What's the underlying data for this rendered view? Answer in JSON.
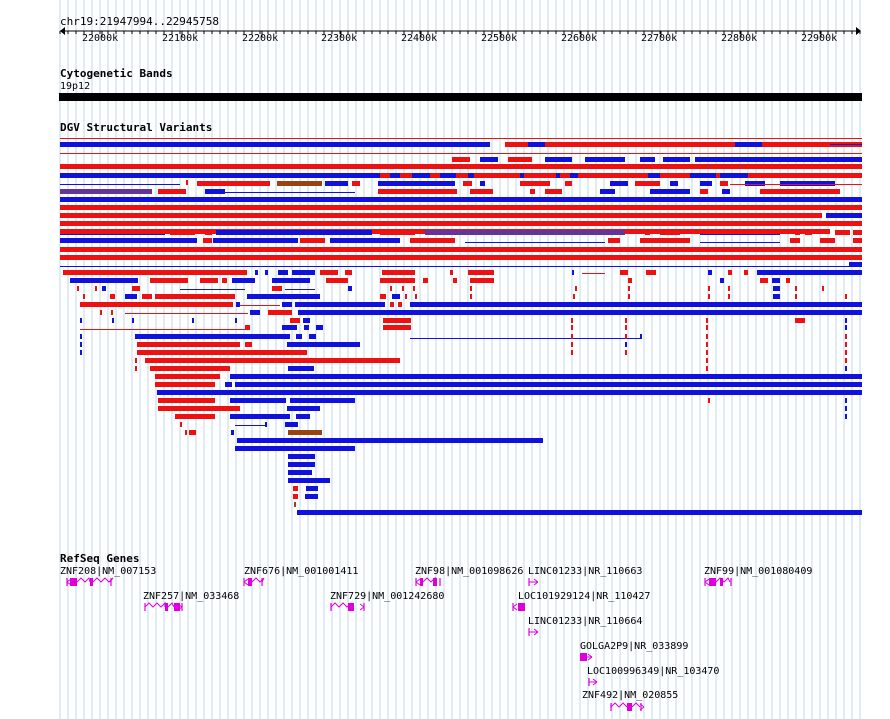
{
  "region_label": "chr19:21947994..22945758",
  "scale": {
    "ticks": [
      "22000k",
      "22100k",
      "22200k",
      "22300k",
      "22400k",
      "22500k",
      "22600k",
      "22700k",
      "22800k",
      "22900k"
    ]
  },
  "tracks": {
    "cytoband": {
      "title": "Cytogenetic Bands",
      "band": "19p12"
    },
    "dgv": {
      "title": "DGV Structural Variants"
    },
    "refseq": {
      "title": "RefSeq Genes"
    }
  },
  "colors": {
    "loss": "#ee1111",
    "gain": "#1111dd",
    "complex": "#663399",
    "inversion": "#994411",
    "gene": "#dd00dd",
    "grid": "#bcd8ee"
  },
  "genes": [
    {
      "label": "ZNF208|NM_007153",
      "strand": "minus"
    },
    {
      "label": "ZNF257|NM_033468",
      "strand": "plus"
    },
    {
      "label": "ZNF676|NM_001001411",
      "strand": "minus"
    },
    {
      "label": "ZNF729|NM_001242680",
      "strand": "plus"
    },
    {
      "label": "ZNF98|NM_001098626",
      "strand": "minus"
    },
    {
      "label": "LINC01233|NR_110663",
      "strand": "plus"
    },
    {
      "label": "LOC101929124|NR_110427",
      "strand": "minus"
    },
    {
      "label": "LINC01233|NR_110664",
      "strand": "plus"
    },
    {
      "label": "GOLGA2P9|NR_033899",
      "strand": "plus"
    },
    {
      "label": "LOC100996349|NR_103470",
      "strand": "plus"
    },
    {
      "label": "ZNF492|NM_020855",
      "strand": "plus"
    },
    {
      "label": "ZNF99|NM_001080409",
      "strand": "minus"
    }
  ]
}
